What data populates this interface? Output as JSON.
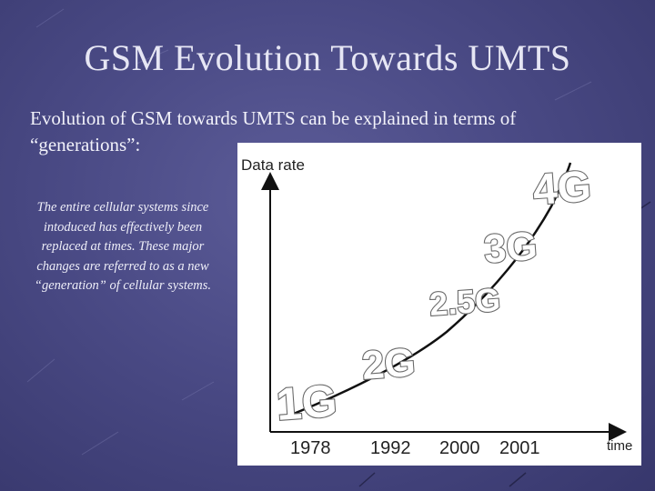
{
  "slide": {
    "title": "GSM Evolution Towards UMTS",
    "intro": "Evolution of GSM towards UMTS can be explained in terms of “generations”:",
    "side_note": "The entire cellular systems since intoduced has effectively been replaced at times. These major changes are referred to as a new “generation” of cellular systems."
  },
  "diagram": {
    "y_axis_label": "Data rate",
    "x_axis_label": "time",
    "generations": [
      "1G",
      "2G",
      "2.5G",
      "3G",
      "4G"
    ],
    "years": [
      "1978",
      "1992",
      "2000",
      "2001"
    ]
  },
  "colors": {
    "background": "#4a4a85",
    "title_text": "#e6e6f4",
    "figure_background": "#ffffff",
    "curve": "#111111"
  }
}
